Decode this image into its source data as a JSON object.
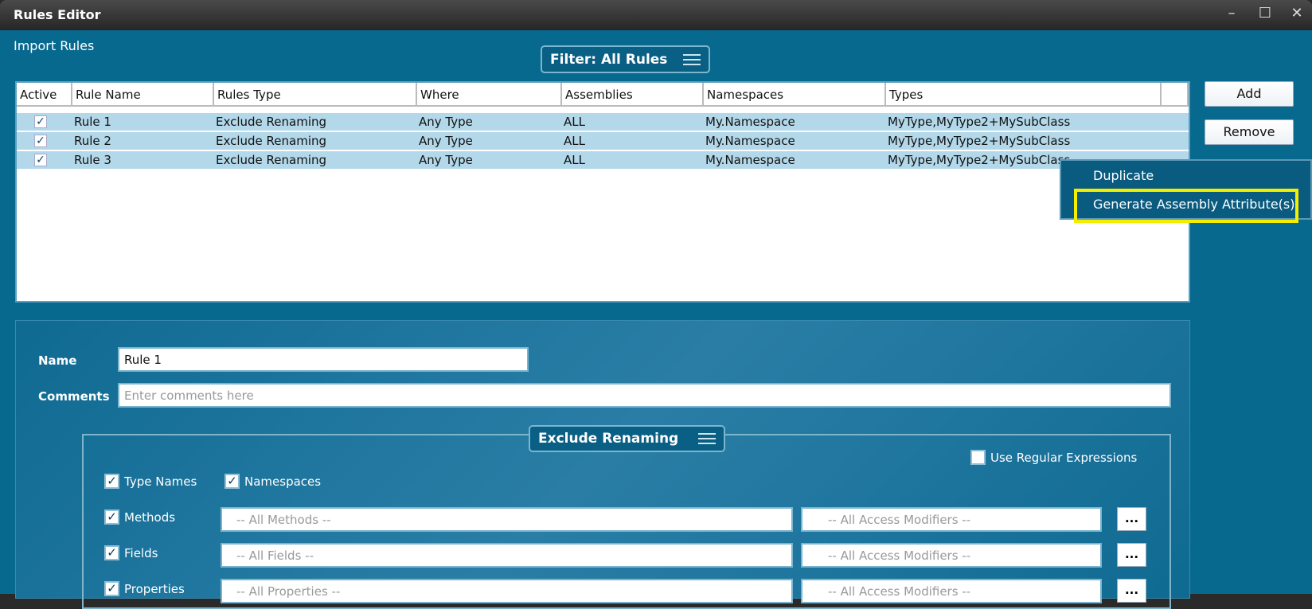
{
  "window": {
    "title": "Rules Editor",
    "min": "–",
    "max": "☐",
    "close": "✕"
  },
  "import_label": "Import Rules",
  "filter": {
    "label": "Filter: All Rules",
    "icon": "hamburger-icon"
  },
  "table": {
    "columns": [
      "Active",
      "Rule Name",
      "Rules Type",
      "Where",
      "Assemblies",
      "Namespaces",
      "Types"
    ],
    "rows": [
      {
        "active": true,
        "name": "Rule 1",
        "type": "Exclude Renaming",
        "where": "Any Type",
        "assemblies": "ALL",
        "namespaces": "My.Namespace",
        "types": "MyType,MyType2+MySubClass"
      },
      {
        "active": true,
        "name": "Rule 2",
        "type": "Exclude Renaming",
        "where": "Any Type",
        "assemblies": "ALL",
        "namespaces": "My.Namespace",
        "types": "MyType,MyType2+MySubClass"
      },
      {
        "active": true,
        "name": "Rule 3",
        "type": "Exclude Renaming",
        "where": "Any Type",
        "assemblies": "ALL",
        "namespaces": "My.Namespace",
        "types": "MyType,MyType2+MySubClass"
      }
    ]
  },
  "buttons": {
    "add": "Add",
    "remove": "Remove"
  },
  "context_menu": {
    "items": [
      "Duplicate",
      "Generate Assembly Attribute(s)"
    ],
    "highlight_color": "#f4ee00"
  },
  "details": {
    "name_label": "Name",
    "name_value": "Rule 1",
    "comments_label": "Comments",
    "comments_placeholder": "Enter comments here",
    "group_title": "Exclude Renaming",
    "use_regex": {
      "label": "Use Regular Expressions",
      "checked": false
    },
    "type_names": {
      "label": "Type Names",
      "checked": true
    },
    "namespaces": {
      "label": "Namespaces",
      "checked": true
    },
    "members": [
      {
        "label": "Methods",
        "checked": true,
        "filter": "-- All Methods --",
        "access": "-- All Access Modifiers --",
        "more": "..."
      },
      {
        "label": "Fields",
        "checked": true,
        "filter": "-- All Fields --",
        "access": "-- All Access Modifiers --",
        "more": "..."
      },
      {
        "label": "Properties",
        "checked": true,
        "filter": "-- All Properties --",
        "access": "-- All Access Modifiers --",
        "more": "..."
      }
    ]
  },
  "colors": {
    "background": "#08698f",
    "selected_row": "#b3d8ea",
    "menu": "#0a5b80"
  }
}
